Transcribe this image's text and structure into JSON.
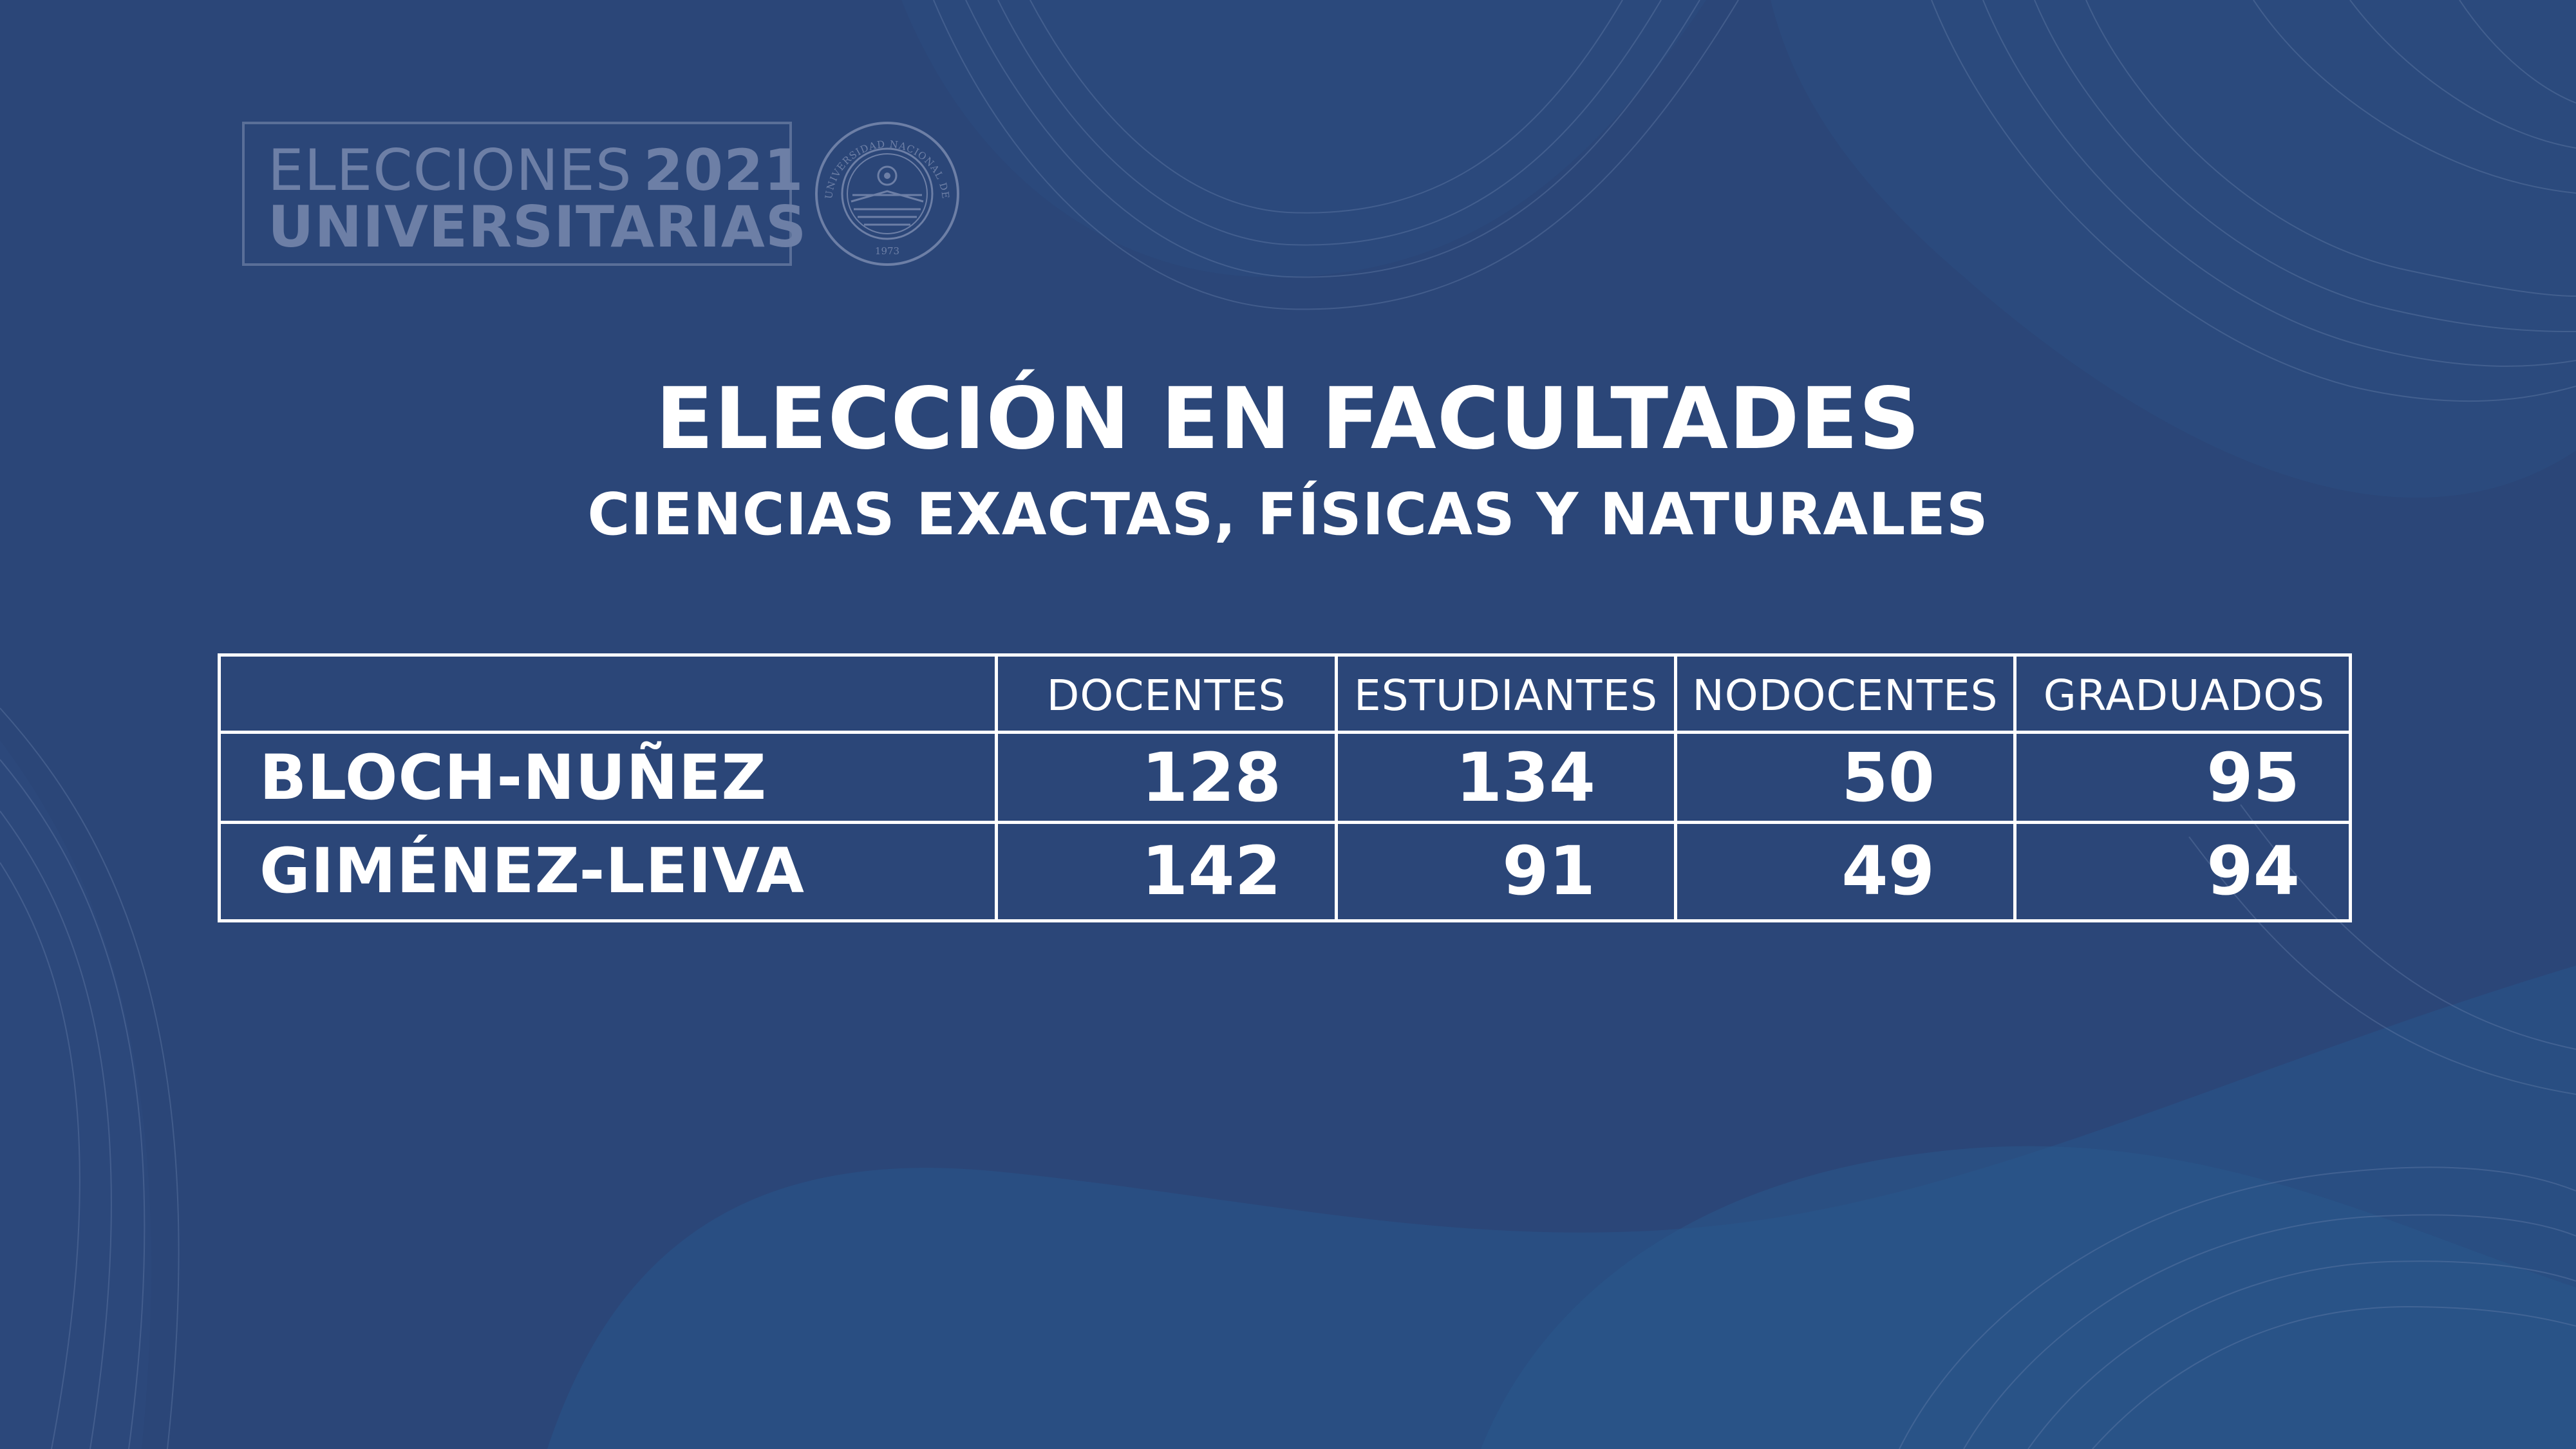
{
  "logo": {
    "line1_light": "ELECCIONES",
    "line1_bold": "2021",
    "line2": "UNIVERSITARIAS",
    "seal_text": "UNIVERSIDAD NACIONAL DE SAN JUAN",
    "seal_year": "1973"
  },
  "title": "ELECCIÓN EN FACULTADES",
  "subtitle": "CIENCIAS EXACTAS, FÍSICAS Y NATURALES",
  "table": {
    "columns": [
      "DOCENTES",
      "ESTUDIANTES",
      "NODOCENTES",
      "GRADUADOS"
    ],
    "rows": [
      {
        "label": "BLOCH-NUÑEZ",
        "values": [
          "128",
          "134",
          "50",
          "95"
        ]
      },
      {
        "label": "GIMÉNEZ-LEIVA",
        "values": [
          "142",
          "91",
          "49",
          "94"
        ]
      }
    ]
  },
  "colors": {
    "background": "#2b4678",
    "text": "#ffffff",
    "logo_text": "#6d7fa6"
  }
}
